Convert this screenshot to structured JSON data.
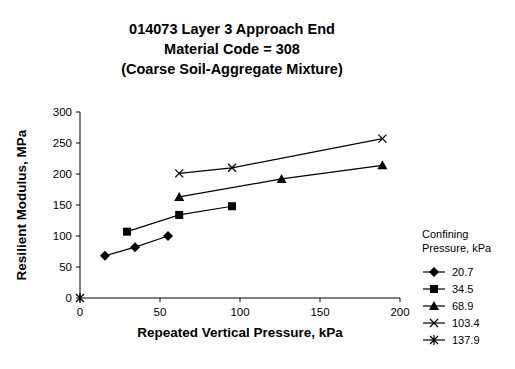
{
  "chart_data": {
    "type": "line",
    "title": "014073 Layer 3 Approach End\nMaterial Code = 308\n(Coarse Soil-Aggregate Mixture)",
    "x_label": "Repeated Vertical Pressure, kPa",
    "y_label": "Resilient Modulus, MPa",
    "legend_title": "Confining Pressure, kPa",
    "xlim": [
      0,
      200
    ],
    "xticks": [
      0,
      50,
      100,
      150,
      200
    ],
    "ylim": [
      0,
      300
    ],
    "yticks": [
      0,
      50,
      100,
      150,
      200,
      250,
      300
    ],
    "grid": false,
    "legend": "right",
    "series": [
      {
        "name": "20.7",
        "color": "#000000",
        "marker": "diamond",
        "x": [
          15.6,
          34.4,
          55
        ],
        "values": [
          68,
          82,
          100
        ]
      },
      {
        "name": "34.5",
        "color": "#000000",
        "marker": "square",
        "x": [
          29.4,
          62,
          95
        ],
        "values": [
          107,
          134,
          148
        ]
      },
      {
        "name": "68.9",
        "color": "#000000",
        "marker": "triangle",
        "x": [
          62,
          126,
          189
        ],
        "values": [
          163,
          192,
          214
        ]
      },
      {
        "name": "103.4",
        "color": "#000000",
        "marker": "x",
        "x": [
          62,
          95,
          189
        ],
        "values": [
          201,
          210,
          257
        ]
      },
      {
        "name": "137.9",
        "color": "#000000",
        "marker": "star",
        "x": [
          0
        ],
        "values": [
          0
        ]
      }
    ]
  }
}
